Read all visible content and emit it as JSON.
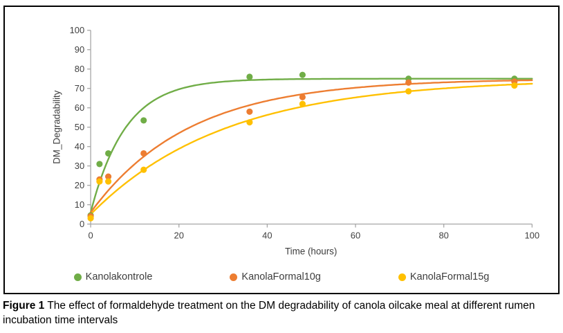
{
  "figure": {
    "caption_label": "Figure 1",
    "caption_text": " The effect of formaldehyde treatment on the DM degradability of canola oilcake meal at different rumen incubation time intervals"
  },
  "chart_data": {
    "type": "scatter",
    "title": "",
    "xlabel": "Time (hours)",
    "ylabel": "DM_Degradability",
    "xlim": [
      0,
      100
    ],
    "ylim": [
      0,
      100
    ],
    "x_ticks": [
      0,
      20,
      40,
      60,
      80,
      100
    ],
    "y_ticks": [
      0,
      10,
      20,
      30,
      40,
      50,
      60,
      70,
      80,
      90,
      100
    ],
    "grid": false,
    "legend_position": "bottom",
    "marker": "circle",
    "x": [
      0,
      2,
      4,
      12,
      36,
      48,
      72,
      96
    ],
    "series": [
      {
        "name": "Kanolakontrole",
        "color": "#70AD47",
        "values": [
          4.5,
          31,
          36.5,
          53.5,
          76,
          77,
          75,
          75
        ],
        "fit": {
          "model": "y = a + b*(1 - exp(-k*t))",
          "a": 6,
          "b": 69,
          "k": 0.127
        }
      },
      {
        "name": "KanolaFormal10g",
        "color": "#ED7D31",
        "values": [
          4,
          23,
          24.5,
          36.5,
          58,
          65.5,
          73,
          73.5
        ],
        "fit": {
          "model": "y = a + b*(1 - exp(-k*t))",
          "a": 6,
          "b": 69,
          "k": 0.045
        }
      },
      {
        "name": "KanolaFormal15g",
        "color": "#FFC000",
        "values": [
          3,
          22,
          22,
          28,
          52.5,
          62,
          68.5,
          71.5
        ],
        "fit": {
          "model": "y = a + b*(1 - exp(-k*t))",
          "a": 5,
          "b": 70,
          "k": 0.033
        }
      }
    ]
  }
}
